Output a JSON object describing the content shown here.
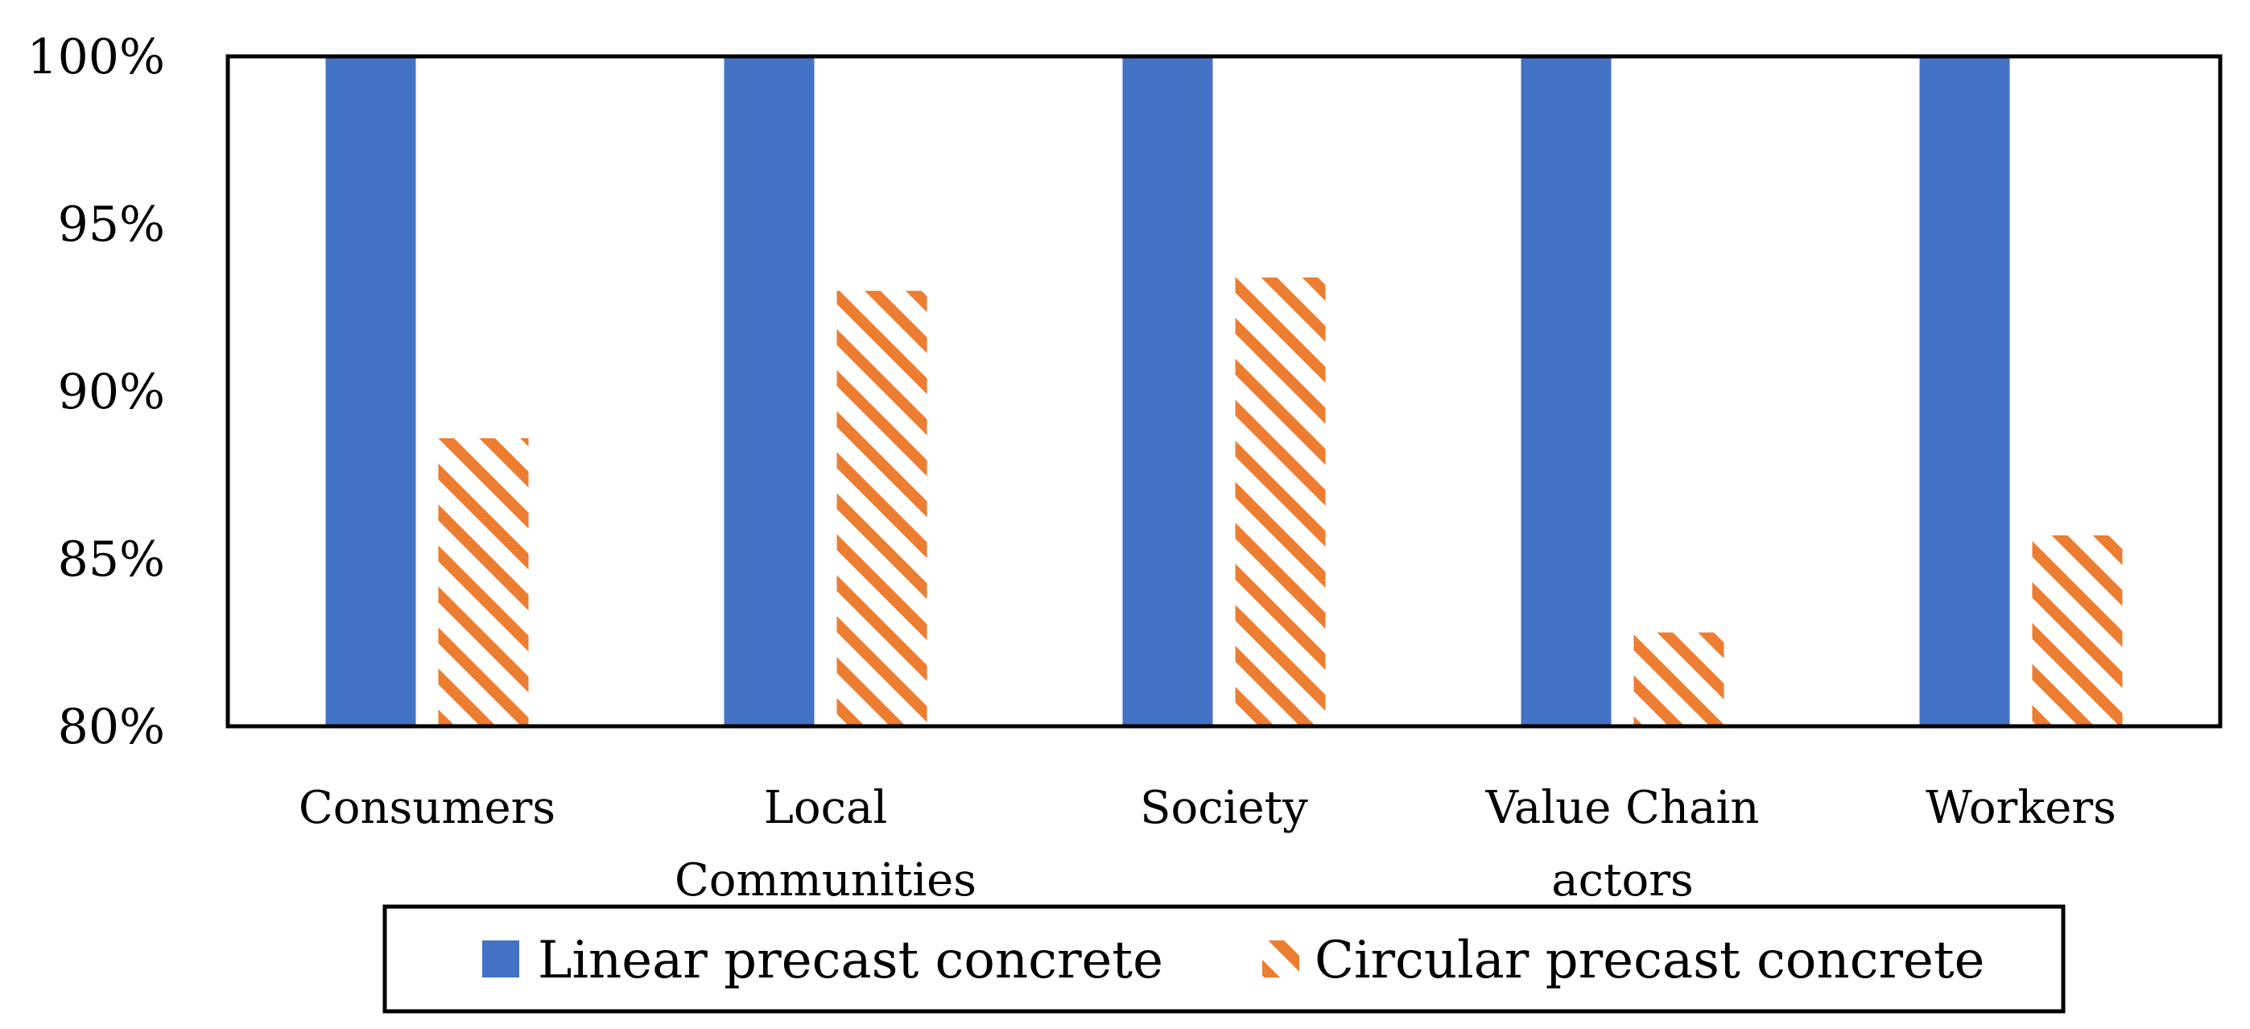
{
  "chart_data": {
    "type": "bar",
    "title": "",
    "xlabel": "",
    "ylabel": "",
    "ylim": [
      80,
      100
    ],
    "yticks": [
      "80%",
      "85%",
      "90%",
      "95%",
      "100%"
    ],
    "categories": [
      [
        "Consumers"
      ],
      [
        "Local",
        "Communities"
      ],
      [
        "Society"
      ],
      [
        "Value Chain",
        "actors"
      ],
      [
        "Workers"
      ]
    ],
    "series": [
      {
        "name": "Linear precast concrete",
        "color": "#4472C4",
        "pattern": "solid",
        "values": [
          100,
          100,
          100,
          100,
          100
        ]
      },
      {
        "name": "Circular precast concrete",
        "color": "#ED7D31",
        "pattern": "diagonal-stripes",
        "values": [
          88.6,
          93.0,
          93.4,
          82.8,
          85.7
        ]
      }
    ],
    "legend_position": "bottom",
    "grid": false
  }
}
